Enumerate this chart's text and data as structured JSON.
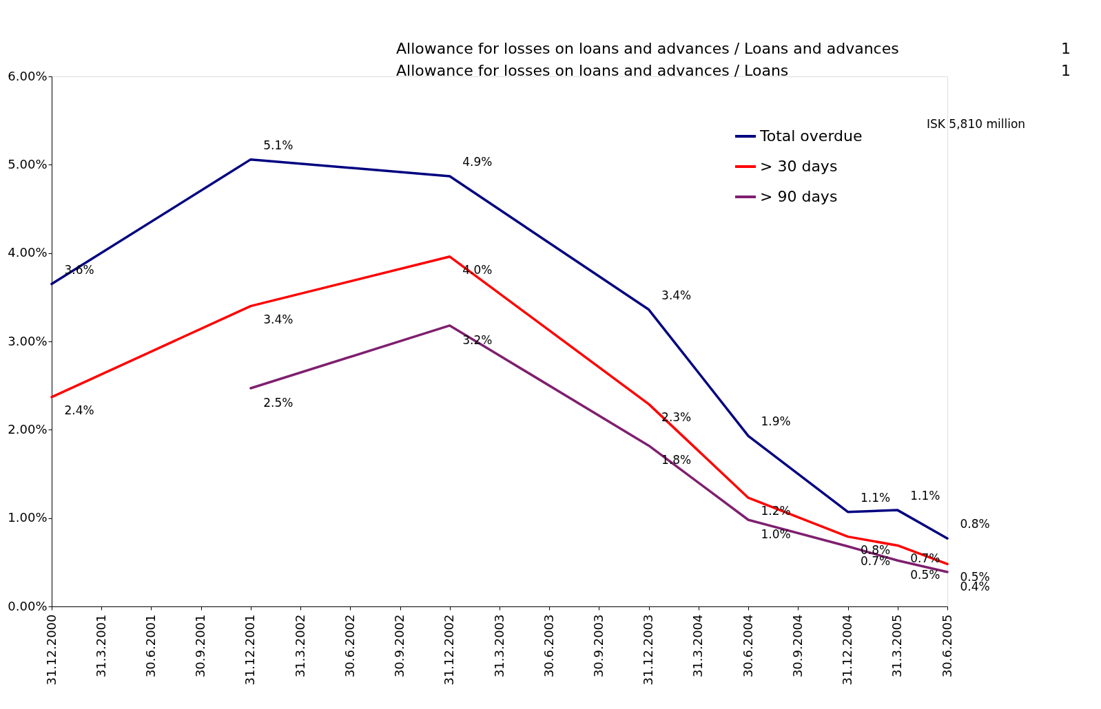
{
  "chart_data": {
    "type": "line",
    "categories": [
      "31.12.2000",
      "31.3.2001",
      "30.6.2001",
      "30.9.2001",
      "31.12.2001",
      "31.3.2002",
      "30.6.2002",
      "30.9.2002",
      "31.12.2002",
      "31.3.2003",
      "30.6.2003",
      "30.9.2003",
      "31.12.2003",
      "31.3.2004",
      "30.6.2004",
      "30.9.2004",
      "31.12.2004",
      "31.3.2005",
      "30.6.2005"
    ],
    "series": [
      {
        "name": "Total overdue",
        "color": "#000080",
        "values": [
          3.65,
          null,
          null,
          null,
          5.06,
          null,
          null,
          null,
          4.87,
          null,
          null,
          null,
          3.36,
          null,
          1.93,
          null,
          1.07,
          1.09,
          0.77
        ],
        "value_labels": [
          "3.6%",
          null,
          null,
          null,
          "5.1%",
          null,
          null,
          null,
          "4.9%",
          null,
          null,
          null,
          "3.4%",
          null,
          "1.9%",
          null,
          "1.1%",
          "1.1%",
          "0.8%"
        ]
      },
      {
        "name": "> 30 days",
        "color": "#ff0000",
        "values": [
          2.37,
          null,
          null,
          null,
          3.4,
          null,
          null,
          null,
          3.96,
          null,
          null,
          null,
          2.29,
          null,
          1.23,
          null,
          0.79,
          0.69,
          0.48
        ],
        "value_labels": [
          "2.4%",
          null,
          null,
          null,
          "3.4%",
          null,
          null,
          null,
          "4.0%",
          null,
          null,
          null,
          "2.3%",
          null,
          "1.2%",
          null,
          "0.8%",
          "0.7%",
          "0.5%"
        ]
      },
      {
        "name": "> 90 days",
        "color": "#7f1f6f",
        "values": [
          null,
          null,
          null,
          null,
          2.47,
          null,
          null,
          null,
          3.18,
          null,
          null,
          null,
          1.82,
          null,
          0.98,
          null,
          0.68,
          0.52,
          0.39
        ],
        "value_labels": [
          null,
          null,
          null,
          null,
          "2.5%",
          null,
          null,
          null,
          "3.2%",
          null,
          null,
          null,
          "1.8%",
          null,
          "1.0%",
          null,
          "0.7%",
          "0.5%",
          "0.4%"
        ]
      }
    ],
    "ylim": [
      0,
      6
    ],
    "yticks": [
      {
        "value": 0,
        "label": "0.00%"
      },
      {
        "value": 1,
        "label": "1.00%"
      },
      {
        "value": 2,
        "label": "2.00%"
      },
      {
        "value": 3,
        "label": "3.00%"
      },
      {
        "value": 4,
        "label": "4.00%"
      },
      {
        "value": 5,
        "label": "5.00%"
      },
      {
        "value": 6,
        "label": "6.00%"
      }
    ],
    "grid": false,
    "legend": "top right",
    "annotations": [
      "Allowance for losses on loans and advances / Loans and advances",
      "Allowance for losses on loans and advances / Loans",
      "1",
      "1",
      "ISK 5,810 million"
    ]
  }
}
